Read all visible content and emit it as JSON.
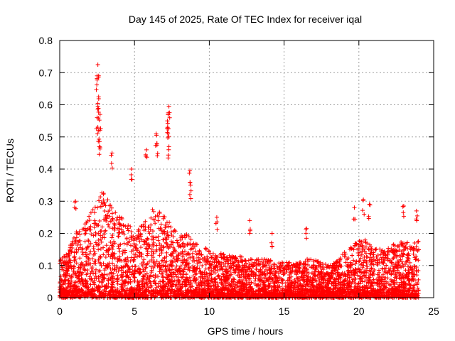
{
  "chart_data": {
    "type": "scatter",
    "title": "Day 145 of 2025, Rate Of TEC Index for receiver iqal",
    "xlabel": "GPS time / hours",
    "ylabel": "ROTI / TECUs",
    "xlim": [
      0,
      25
    ],
    "ylim": [
      0,
      0.8
    ],
    "xticks": [
      0,
      5,
      10,
      15,
      20,
      25
    ],
    "yticks": [
      0,
      0.1,
      0.2,
      0.3,
      0.4,
      0.5,
      0.6,
      0.7,
      0.8
    ],
    "grid": true,
    "marker": "+",
    "color": "#ff0000",
    "series": [
      {
        "name": "ROTI",
        "envelope_hours": [
          0,
          0.5,
          1,
          1.5,
          2,
          2.5,
          3,
          3.5,
          4,
          4.5,
          5,
          5.5,
          6,
          6.5,
          7,
          7.5,
          8,
          8.5,
          9,
          9.5,
          10,
          10.5,
          11,
          11.5,
          12,
          12.5,
          13,
          13.5,
          14,
          14.5,
          15,
          15.5,
          16,
          16.5,
          17,
          17.5,
          18,
          18.5,
          19,
          19.5,
          20,
          20.5,
          21,
          21.5,
          22,
          22.5,
          23,
          23.5,
          24
        ],
        "typical_max": [
          0.12,
          0.14,
          0.2,
          0.22,
          0.26,
          0.32,
          0.33,
          0.28,
          0.26,
          0.24,
          0.2,
          0.24,
          0.27,
          0.28,
          0.26,
          0.22,
          0.2,
          0.2,
          0.17,
          0.16,
          0.15,
          0.14,
          0.14,
          0.13,
          0.13,
          0.12,
          0.12,
          0.12,
          0.12,
          0.11,
          0.11,
          0.11,
          0.12,
          0.12,
          0.12,
          0.11,
          0.1,
          0.12,
          0.14,
          0.16,
          0.18,
          0.18,
          0.16,
          0.15,
          0.16,
          0.17,
          0.18,
          0.17,
          0.18
        ],
        "peaks": [
          {
            "x": 2.55,
            "y": 0.725
          },
          {
            "x": 2.5,
            "y": 0.69
          },
          {
            "x": 2.6,
            "y": 0.625
          },
          {
            "x": 2.55,
            "y": 0.595
          },
          {
            "x": 2.7,
            "y": 0.57
          },
          {
            "x": 2.5,
            "y": 0.56
          },
          {
            "x": 2.6,
            "y": 0.52
          },
          {
            "x": 2.65,
            "y": 0.47
          },
          {
            "x": 3.5,
            "y": 0.45
          },
          {
            "x": 6.45,
            "y": 0.51
          },
          {
            "x": 6.5,
            "y": 0.48
          },
          {
            "x": 5.8,
            "y": 0.46
          },
          {
            "x": 7.3,
            "y": 0.595
          },
          {
            "x": 7.25,
            "y": 0.575
          },
          {
            "x": 7.2,
            "y": 0.55
          },
          {
            "x": 7.25,
            "y": 0.525
          },
          {
            "x": 7.3,
            "y": 0.47
          },
          {
            "x": 4.8,
            "y": 0.4
          },
          {
            "x": 8.7,
            "y": 0.395
          },
          {
            "x": 8.75,
            "y": 0.35
          },
          {
            "x": 1.05,
            "y": 0.3
          },
          {
            "x": 20.3,
            "y": 0.305
          },
          {
            "x": 20.7,
            "y": 0.29
          },
          {
            "x": 23,
            "y": 0.285
          },
          {
            "x": 19.7,
            "y": 0.28
          },
          {
            "x": 23.85,
            "y": 0.27
          },
          {
            "x": 10.5,
            "y": 0.25
          },
          {
            "x": 14.2,
            "y": 0.2
          },
          {
            "x": 16.5,
            "y": 0.215
          },
          {
            "x": 12.7,
            "y": 0.24
          }
        ]
      }
    ]
  }
}
